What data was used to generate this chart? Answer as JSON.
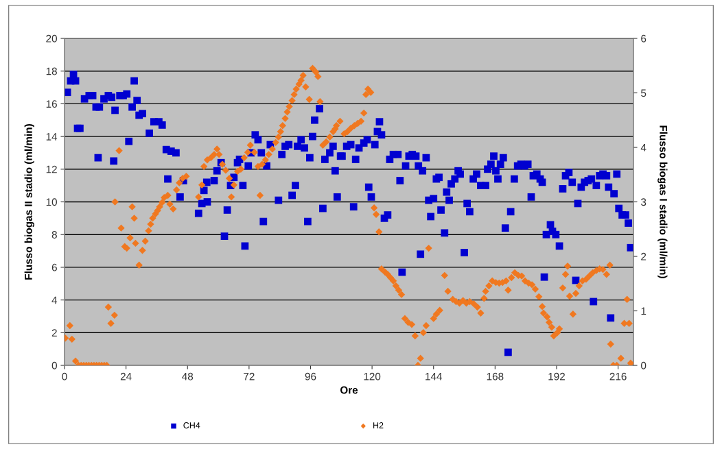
{
  "chart_data": {
    "type": "scatter",
    "xlabel": "Ore",
    "ylabel": "Flusso biogas II stadio (ml/min)",
    "y2label": "Flusso biogas I stadio (ml/min)",
    "xlim": [
      0,
      222
    ],
    "xticks": [
      0,
      24,
      48,
      72,
      96,
      120,
      144,
      168,
      192,
      216
    ],
    "ylim": [
      0,
      20
    ],
    "yticks": [
      0,
      2,
      4,
      6,
      8,
      10,
      12,
      14,
      16,
      18,
      20
    ],
    "y2lim": [
      0,
      6
    ],
    "y2ticks": [
      0,
      1,
      2,
      3,
      4,
      5,
      6
    ],
    "grid": "y",
    "legend": "bottom",
    "series": [
      {
        "name": "CH4",
        "color": "#0000d0",
        "marker": "square",
        "x": [
          1.1,
          2.4,
          3.5,
          4.3,
          5.1,
          6.0,
          7.8,
          9.6,
          11.0,
          12.3,
          13.6,
          13.1,
          15.4,
          17.1,
          18.4,
          19.7,
          19.2,
          21.6,
          22.9,
          24.3,
          25.1,
          26.4,
          27.2,
          28.3,
          29.1,
          30.4,
          33.1,
          34.9,
          36.8,
          38.1,
          39.7,
          41.6,
          43.5,
          40.3,
          45.1,
          46.4,
          52.3,
          53.6,
          55.7,
          54.4,
          55.5,
          58.4,
          59.5,
          61.1,
          62.4,
          63.5,
          64.8,
          66.1,
          68.3,
          67.5,
          69.6,
          70.4,
          71.7,
          72.8,
          74.4,
          75.5,
          76.8,
          77.6,
          78.9,
          80.3,
          83.5,
          84.8,
          86.1,
          87.5,
          88.8,
          90.1,
          90.9,
          92.3,
          93.6,
          94.9,
          95.7,
          96.8,
          97.6,
          99.5,
          100.8,
          101.6,
          103.5,
          104.8,
          105.6,
          106.4,
          107.7,
          108.3,
          110.1,
          111.7,
          112.8,
          113.6,
          114.9,
          116.8,
          118.1,
          118.7,
          119.7,
          121.1,
          122.1,
          122.9,
          123.7,
          124.8,
          126.1,
          126.9,
          128.3,
          130.1,
          130.9,
          131.7,
          133.1,
          134.4,
          135.7,
          137.1,
          138.1,
          138.9,
          139.7,
          141.1,
          142.1,
          142.9,
          144.0,
          145.1,
          146.1,
          146.9,
          148.3,
          149.1,
          150.1,
          150.9,
          152.3,
          153.6,
          154.4,
          156.0,
          157.1,
          158.1,
          159.5,
          160.8,
          162.4,
          164.3,
          165.1,
          166.4,
          167.5,
          168.3,
          169.1,
          170.1,
          171.2,
          172.0,
          173.1,
          174.1,
          175.5,
          176.8,
          178.1,
          179.5,
          180.8,
          182.1,
          182.9,
          184.3,
          185.6,
          186.4,
          187.2,
          188.0,
          189.6,
          190.4,
          191.7,
          193.1,
          194.4,
          195.5,
          196.8,
          198.1,
          199.5,
          200.3,
          201.6,
          202.9,
          204.3,
          205.6,
          206.4,
          207.5,
          208.8,
          210.1,
          211.5,
          212.3,
          213.1,
          214.4,
          215.5,
          216.3,
          217.6,
          218.9,
          220.0,
          220.9
        ],
        "values": [
          16.7,
          17.4,
          17.8,
          17.4,
          14.5,
          14.5,
          16.3,
          16.5,
          16.5,
          15.8,
          15.8,
          12.7,
          16.3,
          16.5,
          16.4,
          15.6,
          12.5,
          16.5,
          16.5,
          16.6,
          13.7,
          15.8,
          17.4,
          16.2,
          15.3,
          15.4,
          14.2,
          14.9,
          14.9,
          14.7,
          13.2,
          13.1,
          13.0,
          11.4,
          10.3,
          11.3,
          9.3,
          9.9,
          10.0,
          10.7,
          11.2,
          11.3,
          11.9,
          12.4,
          7.9,
          9.5,
          11.0,
          11.5,
          12.6,
          12.4,
          11.0,
          7.3,
          12.2,
          13.0,
          14.1,
          13.8,
          13.0,
          8.8,
          12.2,
          13.5,
          10.1,
          12.9,
          13.4,
          13.5,
          10.4,
          11.0,
          13.4,
          13.8,
          13.3,
          8.8,
          12.7,
          14.0,
          15.0,
          15.7,
          9.6,
          12.6,
          13.0,
          13.4,
          11.9,
          10.3,
          12.8,
          12.8,
          13.4,
          13.5,
          9.7,
          12.6,
          13.3,
          13.6,
          13.8,
          10.9,
          10.3,
          13.5,
          14.3,
          14.9,
          14.1,
          9.0,
          9.2,
          12.6,
          12.9,
          12.9,
          11.3,
          5.7,
          12.2,
          12.8,
          12.9,
          12.8,
          12.2,
          6.8,
          11.9,
          12.7,
          10.1,
          9.1,
          10.2,
          11.4,
          11.5,
          9.5,
          8.1,
          10.6,
          10.1,
          11.1,
          11.4,
          11.9,
          11.7,
          6.9,
          9.9,
          9.4,
          11.4,
          11.7,
          11.0,
          11.0,
          12.0,
          12.3,
          12.8,
          11.9,
          11.4,
          12.3,
          12.7,
          8.4,
          0.8,
          9.4,
          11.4,
          12.2,
          12.3,
          12.2,
          12.3,
          10.3,
          11.6,
          11.7,
          11.4,
          11.2,
          5.4,
          8.0,
          8.6,
          8.2,
          8.0,
          7.3,
          10.8,
          11.6,
          11.8,
          11.2,
          5.2,
          9.9,
          10.9,
          11.2,
          11.3,
          11.4,
          3.9,
          11.0,
          11.6,
          11.7,
          11.6,
          10.9,
          2.9,
          10.5,
          11.7,
          9.6,
          9.2,
          9.2,
          8.7,
          7.2
        ]
      },
      {
        "name": "H2",
        "color": "#f07820",
        "marker": "diamond",
        "axis": "y2",
        "x": [
          0.3,
          2.1,
          2.9,
          4.3,
          5.5,
          6.5,
          7.5,
          8.5,
          9.5,
          10.5,
          11.5,
          12.5,
          13.5,
          14.5,
          15.5,
          16.5,
          17.1,
          18.1,
          19.5,
          19.7,
          21.3,
          22.1,
          23.5,
          24.3,
          25.6,
          26.4,
          27.2,
          27.7,
          29.1,
          30.4,
          31.5,
          32.8,
          33.6,
          34.4,
          35.5,
          36.3,
          37.1,
          38.1,
          38.9,
          40.3,
          41.1,
          42.4,
          43.7,
          44.8,
          46.1,
          47.5,
          52.3,
          53.6,
          54.4,
          55.7,
          57.1,
          58.4,
          59.5,
          60.3,
          61.6,
          62.9,
          64.3,
          65.1,
          66.1,
          67.5,
          68.8,
          70.1,
          71.5,
          72.5,
          74.1,
          75.5,
          76.3,
          77.1,
          78.4,
          79.7,
          81.1,
          82.4,
          83.5,
          84.3,
          85.1,
          86.1,
          86.9,
          87.7,
          88.8,
          89.6,
          90.4,
          91.5,
          92.3,
          93.1,
          94.1,
          95.5,
          96.8,
          98.1,
          98.9,
          99.7,
          100.8,
          102.1,
          103.5,
          104.8,
          105.6,
          106.1,
          107.5,
          109.1,
          110.4,
          111.7,
          113.1,
          114.4,
          115.7,
          116.8,
          117.6,
          118.4,
          119.5,
          120.8,
          121.6,
          122.7,
          123.7,
          125.1,
          126.1,
          127.2,
          128.3,
          129.3,
          130.4,
          131.5,
          132.8,
          134.1,
          135.5,
          136.8,
          137.9,
          138.9,
          140.0,
          141.1,
          142.1,
          144.0,
          145.1,
          146.4,
          148.3,
          149.6,
          151.5,
          152.8,
          154.1,
          155.5,
          156.8,
          158.1,
          159.7,
          161.1,
          162.4,
          163.7,
          164.3,
          165.6,
          166.9,
          168.3,
          169.6,
          170.9,
          172.3,
          173.1,
          174.4,
          175.7,
          177.1,
          178.4,
          179.7,
          181.1,
          182.4,
          183.7,
          185.1,
          186.4,
          186.9,
          188.3,
          189.1,
          190.1,
          190.9,
          192.3,
          193.1,
          194.4,
          195.5,
          196.3,
          197.1,
          198.4,
          199.5,
          200.8,
          202.1,
          203.5,
          204.8,
          206.1,
          207.5,
          208.8,
          210.1,
          211.5,
          212.8,
          213.1,
          214.1,
          215.5,
          217.1,
          218.4,
          219.5,
          220.3,
          220.9
        ],
        "values": [
          0.5,
          0.73,
          0.48,
          0.08,
          0.0,
          0.0,
          0.0,
          0.0,
          0.0,
          0.0,
          0.0,
          0.0,
          0.0,
          0.0,
          0.0,
          0.0,
          1.07,
          0.77,
          0.92,
          3.0,
          3.94,
          2.52,
          2.18,
          2.15,
          2.34,
          2.91,
          2.7,
          2.24,
          1.84,
          2.11,
          2.28,
          2.47,
          2.59,
          2.7,
          2.78,
          2.84,
          2.91,
          2.99,
          3.08,
          3.12,
          2.96,
          2.87,
          3.22,
          3.35,
          3.43,
          3.47,
          3.09,
          3.31,
          3.65,
          3.77,
          3.81,
          3.87,
          3.97,
          3.87,
          3.69,
          3.58,
          3.43,
          3.09,
          3.31,
          3.56,
          3.6,
          3.81,
          3.91,
          4.04,
          3.91,
          3.65,
          3.12,
          3.69,
          3.77,
          3.87,
          3.97,
          4.09,
          4.19,
          4.29,
          4.4,
          4.53,
          4.65,
          4.75,
          4.86,
          4.97,
          5.07,
          5.16,
          5.23,
          5.32,
          5.11,
          4.88,
          5.45,
          5.38,
          5.3,
          4.84,
          4.04,
          4.1,
          4.19,
          4.29,
          4.34,
          4.4,
          4.48,
          4.25,
          4.29,
          4.35,
          4.4,
          4.44,
          4.48,
          4.63,
          4.97,
          5.07,
          5.01,
          2.89,
          2.77,
          2.45,
          1.77,
          1.71,
          1.67,
          1.61,
          1.55,
          1.46,
          1.38,
          1.3,
          0.86,
          0.79,
          0.75,
          0.54,
          0.0,
          0.13,
          0.6,
          0.73,
          2.15,
          0.86,
          0.94,
          1.01,
          1.65,
          1.36,
          1.21,
          1.17,
          1.14,
          1.19,
          1.14,
          1.17,
          1.13,
          1.07,
          0.96,
          1.23,
          1.36,
          1.46,
          1.55,
          1.52,
          1.51,
          1.52,
          1.55,
          1.38,
          1.61,
          1.7,
          1.65,
          1.64,
          1.55,
          1.51,
          1.48,
          1.4,
          1.26,
          1.08,
          0.96,
          0.89,
          0.79,
          0.7,
          0.54,
          0.6,
          0.67,
          1.42,
          1.67,
          1.82,
          1.27,
          0.94,
          1.32,
          1.46,
          1.55,
          1.58,
          1.64,
          1.7,
          1.74,
          1.77,
          1.76,
          1.67,
          1.84,
          0.39,
          0.0,
          0.0,
          0.13,
          0.77,
          1.21,
          0.77,
          0.04
        ]
      }
    ]
  }
}
